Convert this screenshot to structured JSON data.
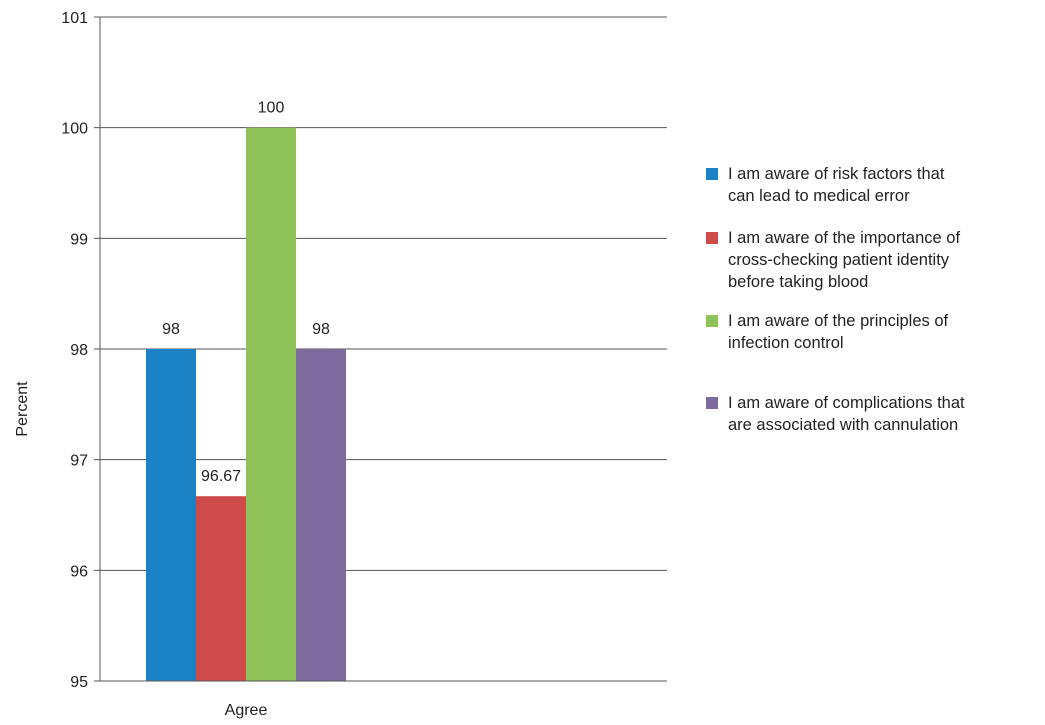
{
  "chart_data": {
    "type": "bar",
    "categories": [
      "Agree"
    ],
    "series": [
      {
        "name": "I am aware of risk factors that can lead to medical error",
        "values": [
          98
        ],
        "color": "#1b82c5"
      },
      {
        "name": "I am aware of the importance of cross-checking patient identity before taking blood",
        "values": [
          96.67
        ],
        "color": "#cf4b4b"
      },
      {
        "name": "I am aware of the principles of infection control",
        "values": [
          100
        ],
        "color": "#8fc35a"
      },
      {
        "name": "I am aware of complications that are associated with cannulation",
        "values": [
          98
        ],
        "color": "#7d6b9e"
      }
    ],
    "data_labels": [
      "98",
      "96.67",
      "100",
      "98"
    ],
    "title": "",
    "xlabel": "",
    "ylabel": "Percent",
    "ylim": [
      95,
      101
    ],
    "yticks": [
      95,
      96,
      97,
      98,
      99,
      100,
      101
    ],
    "grid": true,
    "legend_position": "right"
  },
  "legend": {
    "items": [
      "I am aware of risk factors that\ncan lead to medical error",
      "I am aware of the importance of\ncross-checking patient identity\nbefore taking blood",
      "I am aware of the principles of\ninfection control",
      "I am aware of complications that\nare associated with cannulation"
    ]
  }
}
